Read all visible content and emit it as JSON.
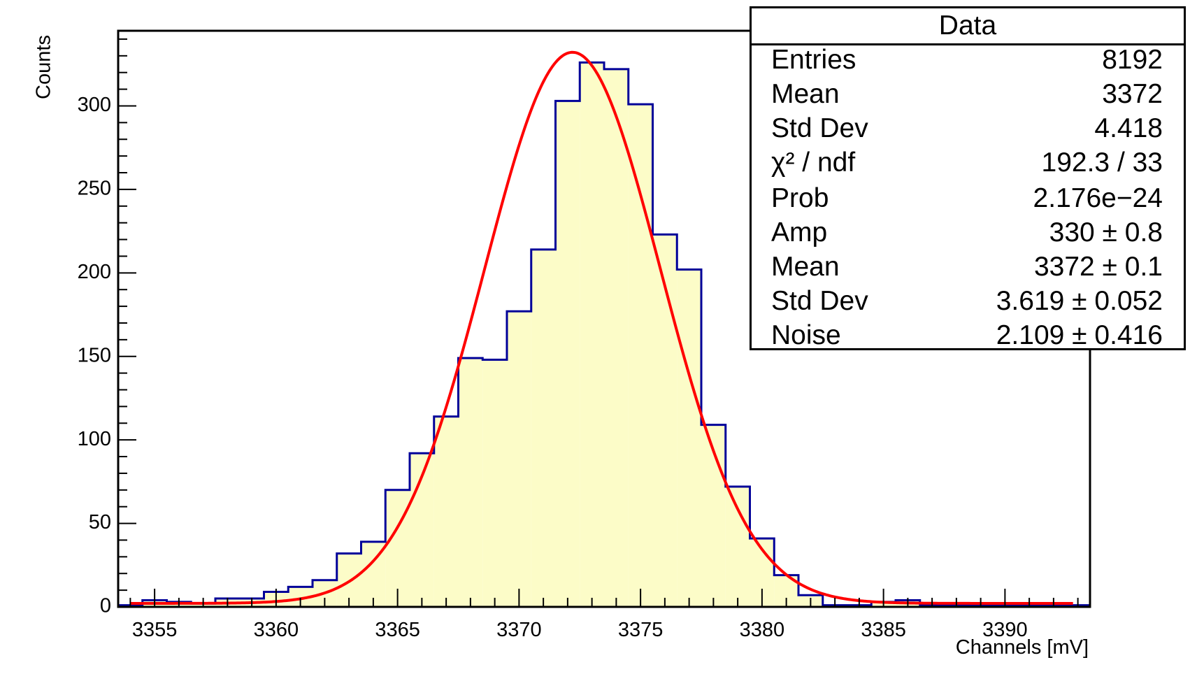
{
  "chart_data": {
    "type": "bar",
    "xlabel": "Channels [mV]",
    "ylabel": "Counts",
    "xlim": [
      3353.5,
      3393.5
    ],
    "ylim": [
      0,
      345
    ],
    "x_ticks": [
      3355,
      3360,
      3365,
      3370,
      3375,
      3380,
      3385,
      3390
    ],
    "y_ticks": [
      0,
      50,
      100,
      150,
      200,
      250,
      300
    ],
    "histogram": {
      "name": "Data",
      "bin_edges": [
        3353.5,
        3354.5,
        3355.5,
        3356.5,
        3357.5,
        3358.5,
        3359.5,
        3360.5,
        3361.5,
        3362.5,
        3363.5,
        3364.5,
        3365.5,
        3366.5,
        3367.5,
        3368.5,
        3369.5,
        3370.5,
        3371.5,
        3372.5,
        3373.5,
        3374.5,
        3375.5,
        3376.5,
        3377.5,
        3378.5,
        3379.5,
        3380.5,
        3381.5,
        3382.5,
        3383.5,
        3384.5,
        3385.5,
        3386.5,
        3387.5,
        3388.5,
        3389.5,
        3390.5,
        3391.5,
        3392.5,
        3393.5
      ],
      "counts": [
        1,
        4,
        3,
        2,
        5,
        5,
        9,
        12,
        16,
        32,
        39,
        70,
        92,
        114,
        149,
        148,
        177,
        214,
        303,
        326,
        322,
        301,
        223,
        202,
        109,
        72,
        41,
        19,
        7,
        1,
        1,
        3,
        4,
        1,
        1,
        1,
        1,
        1,
        1,
        1
      ],
      "fill_color": "#fcfcc8",
      "line_color": "#000099"
    },
    "fit": {
      "type": "gaussian_plus_noise",
      "amp": 330,
      "mean": 3372.2,
      "sigma": 3.619,
      "noise": 2.109,
      "color": "#ff0000"
    }
  },
  "stats": {
    "title": "Data",
    "rows": [
      {
        "label": "Entries",
        "value": "8192"
      },
      {
        "label": "Mean",
        "value": "3372"
      },
      {
        "label": "Std Dev",
        "value": "4.418"
      },
      {
        "label": "χ² / ndf",
        "value": "192.3 / 33"
      },
      {
        "label": "Prob",
        "value": "2.176e−24"
      },
      {
        "label": "Amp",
        "value": "330 ± 0.8"
      },
      {
        "label": "Mean",
        "value": "3372 ± 0.1"
      },
      {
        "label": "Std Dev",
        "value": "3.619 ± 0.052"
      },
      {
        "label": "Noise",
        "value": "2.109 ± 0.416"
      }
    ]
  }
}
